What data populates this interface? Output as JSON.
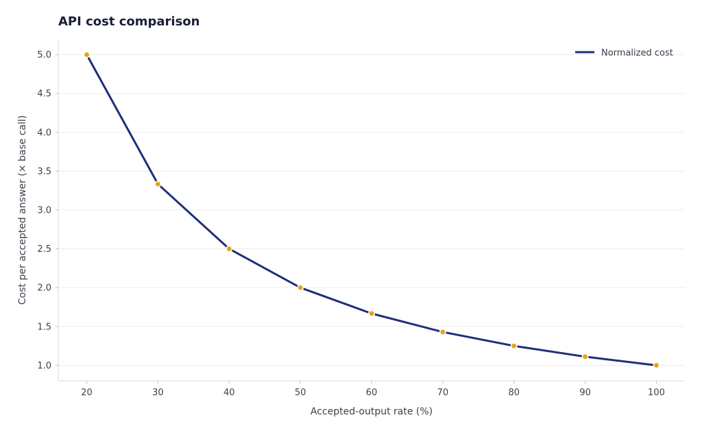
{
  "chart_data": {
    "type": "line",
    "title": "API cost comparison",
    "xlabel": "Accepted-output rate (%)",
    "ylabel": "Cost per accepted answer (× base call)",
    "xlim": [
      16,
      104
    ],
    "ylim": [
      0.8,
      5.2
    ],
    "xticks": [
      20,
      30,
      40,
      50,
      60,
      70,
      80,
      90,
      100
    ],
    "yticks": [
      1.0,
      1.5,
      2.0,
      2.5,
      3.0,
      3.5,
      4.0,
      4.5,
      5.0
    ],
    "grid": "horizontal",
    "legend_position": "top-right",
    "series": [
      {
        "name": "Normalized cost",
        "x": [
          20,
          30,
          40,
          50,
          60,
          70,
          80,
          90,
          100
        ],
        "y": [
          5.0,
          3.333,
          2.5,
          2.0,
          1.667,
          1.429,
          1.25,
          1.111,
          1.0
        ],
        "line_color": "#1f2d7a",
        "marker_color": "#e5a31b"
      }
    ]
  }
}
